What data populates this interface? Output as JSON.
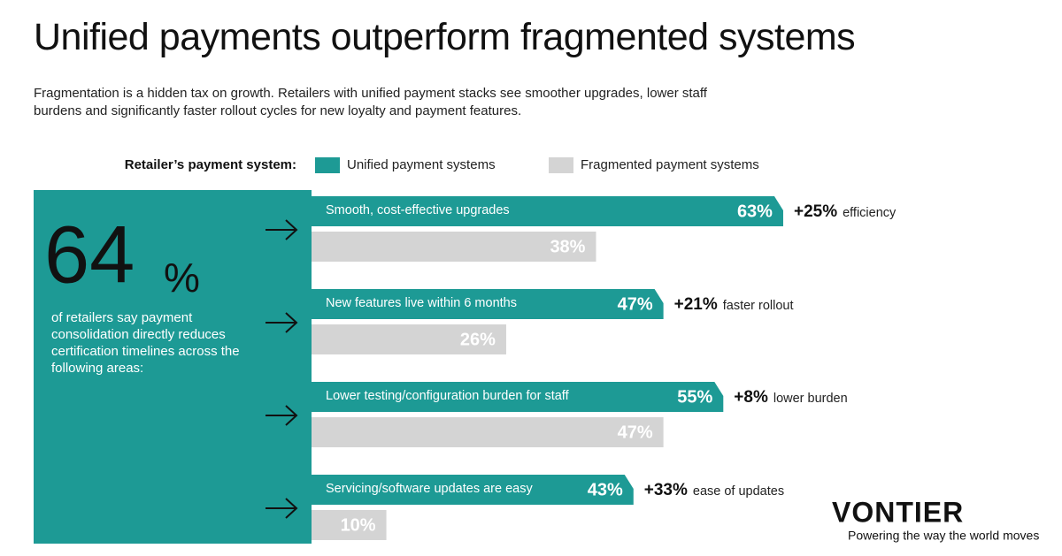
{
  "chart_data": {
    "type": "bar",
    "title": "Unified payments outperform fragmented systems",
    "subtitle": "Fragmentation is a hidden tax on growth. Retailers with unified payment stacks see smoother upgrades, lower staff burdens and significantly faster rollout cycles for new loyalty and payment features.",
    "legend_title": "Retailer’s payment system:",
    "categories": [
      "Smooth, cost-effective upgrades",
      "New features live within 6 months",
      "Lower testing/configuration burden for staff",
      "Servicing/software updates are easy"
    ],
    "series": [
      {
        "name": "Unified payment systems",
        "color": "#1d9a95",
        "values": [
          63,
          47,
          55,
          43
        ],
        "value_labels": [
          "63%",
          "47%",
          "55%",
          "43%"
        ]
      },
      {
        "name": "Fragmented payment systems",
        "color": "#d4d4d4",
        "values": [
          38,
          26,
          47,
          10
        ],
        "value_labels": [
          "38%",
          "26%",
          "47%",
          "10%"
        ]
      }
    ],
    "annotations": [
      {
        "delta": "+25%",
        "note": "efficiency"
      },
      {
        "delta": "+21%",
        "note": "faster rollout"
      },
      {
        "delta": "+8%",
        "note": "lower burden"
      },
      {
        "delta": "+33%",
        "note": "ease of updates"
      }
    ],
    "callout": {
      "value": 64,
      "unit": "%",
      "text": "of retailers say payment consolidation directly reduces certification timelines across the following areas:"
    },
    "brand": {
      "name": "VONTIER",
      "tagline": "Powering the way the world moves"
    }
  }
}
